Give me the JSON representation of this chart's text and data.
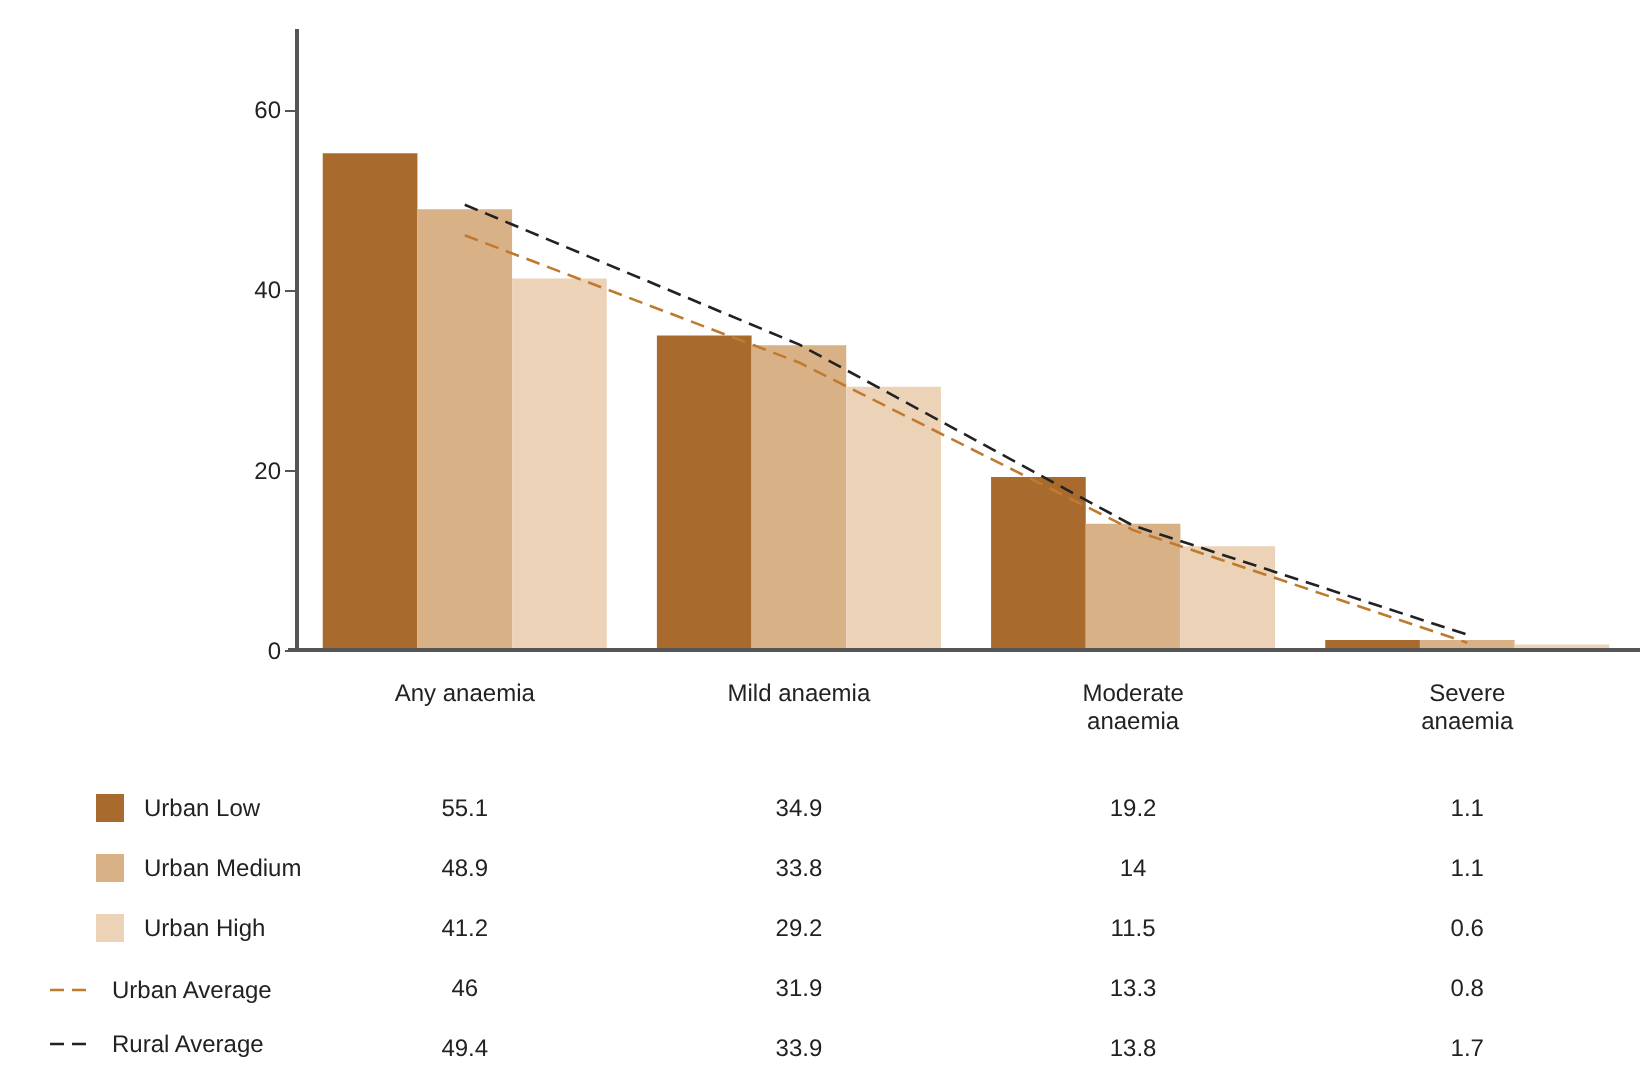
{
  "chart_data": {
    "type": "bar",
    "categories": [
      "Any anaemia",
      "Mild anaemia",
      "Moderate anaemia",
      "Severe anaemia"
    ],
    "series": [
      {
        "name": "Urban Low",
        "color": "#a86b2d",
        "values": [
          55.1,
          34.9,
          19.2,
          1.1
        ]
      },
      {
        "name": "Urban Medium",
        "color": "#d9b187",
        "values": [
          48.9,
          33.8,
          14,
          1.1
        ]
      },
      {
        "name": "Urban High",
        "color": "#ecd3b8",
        "values": [
          41.2,
          29.2,
          11.5,
          0.6
        ]
      },
      {
        "name": "Urban Average",
        "type": "line",
        "line_style": "dashed",
        "color": "#c07a30",
        "values": [
          46,
          31.9,
          13.3,
          0.8
        ]
      },
      {
        "name": "Rural Average",
        "type": "line",
        "line_style": "dashed",
        "color": "#222222",
        "values": [
          49.4,
          33.9,
          13.8,
          1.7
        ]
      }
    ],
    "ylim": [
      0,
      69
    ],
    "yticks": [
      0,
      20,
      40,
      60
    ],
    "grid": false,
    "legend": "bottom",
    "data_labels": true
  }
}
